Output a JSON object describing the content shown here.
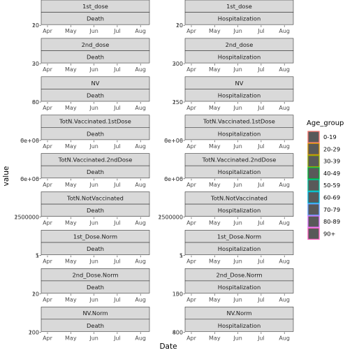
{
  "chart_data": {
    "type": "line",
    "xlabel": "Date",
    "ylabel": "value",
    "x_ticks": [
      "Apr",
      "May",
      "Jun",
      "Jul",
      "Aug"
    ],
    "facet_columns": [
      "Death",
      "Hospitalization"
    ],
    "facet_rows": [
      {
        "metric": "1st_dose",
        "y_ticks": [
          [
            "10",
            "20"
          ],
          [
            "10",
            "20"
          ]
        ]
      },
      {
        "metric": "2nd_dose",
        "y_ticks": [
          [
            "20",
            "30"
          ],
          [
            "200",
            "300"
          ]
        ]
      },
      {
        "metric": "NV",
        "y_ticks": [
          [
            "60",
            "80"
          ],
          [
            "150",
            "250"
          ]
        ]
      },
      {
        "metric": "TotN.Vaccinated.1stDose",
        "y_ticks": [
          [
            "0e+00",
            "6e+06"
          ],
          [
            "0e+00",
            "6e+06"
          ]
        ]
      },
      {
        "metric": "TotN.Vaccinated.2ndDose",
        "y_ticks": [
          [
            "0e+00",
            "6e+06"
          ],
          [
            "0e+00",
            "6e+06"
          ]
        ]
      },
      {
        "metric": "TotN.NotVaccinated",
        "y_ticks": [
          [
            "1500000",
            "2500000"
          ],
          [
            "1500000",
            "2500000"
          ]
        ]
      },
      {
        "metric": "1st_Dose.Norm",
        "y_ticks": [
          [
            "1",
            "5"
          ],
          [
            "1",
            "5"
          ]
        ]
      },
      {
        "metric": "2nd_Dose.Norm",
        "y_ticks": [
          [
            "10",
            "20"
          ],
          [
            "100",
            "150"
          ]
        ]
      },
      {
        "metric": "NV.Norm",
        "y_ticks": [
          [
            "100",
            "200"
          ],
          [
            "400",
            "800"
          ]
        ]
      }
    ],
    "legend": {
      "title": "Age_group",
      "position": "right",
      "entries": [
        {
          "label": "0-19",
          "color": "#F8766D"
        },
        {
          "label": "20-29",
          "color": "#D39200"
        },
        {
          "label": "30-39",
          "color": "#93AA00"
        },
        {
          "label": "40-49",
          "color": "#00BA38"
        },
        {
          "label": "50-59",
          "color": "#00C19F"
        },
        {
          "label": "60-69",
          "color": "#00B9E3"
        },
        {
          "label": "70-79",
          "color": "#619CFF"
        },
        {
          "label": "80-89",
          "color": "#DB72FB"
        },
        {
          "label": "90+",
          "color": "#FF61C3"
        }
      ]
    },
    "grid": false,
    "colors": {
      "strip_fill": "#D9D9D9",
      "strip_border": "#333333",
      "key_fill": "#595959"
    }
  }
}
